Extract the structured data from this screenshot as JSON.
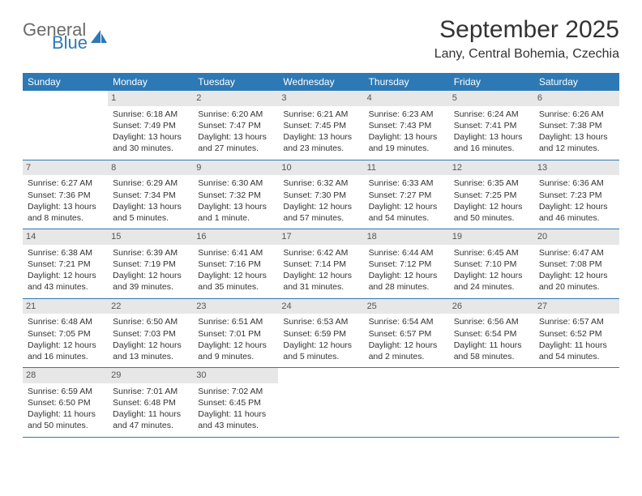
{
  "brand": {
    "word1": "General",
    "word2": "Blue"
  },
  "title": "September 2025",
  "location": "Lany, Central Bohemia, Czechia",
  "colors": {
    "header_blue": "#2d79b5",
    "daynum_bg": "#e7e7e7",
    "text": "#333333",
    "logo_gray": "#6b6b6b"
  },
  "weekdays": [
    "Sunday",
    "Monday",
    "Tuesday",
    "Wednesday",
    "Thursday",
    "Friday",
    "Saturday"
  ],
  "weeks": [
    [
      {
        "n": "",
        "sr": "",
        "ss": "",
        "dl1": "",
        "dl2": ""
      },
      {
        "n": "1",
        "sr": "Sunrise: 6:18 AM",
        "ss": "Sunset: 7:49 PM",
        "dl1": "Daylight: 13 hours",
        "dl2": "and 30 minutes."
      },
      {
        "n": "2",
        "sr": "Sunrise: 6:20 AM",
        "ss": "Sunset: 7:47 PM",
        "dl1": "Daylight: 13 hours",
        "dl2": "and 27 minutes."
      },
      {
        "n": "3",
        "sr": "Sunrise: 6:21 AM",
        "ss": "Sunset: 7:45 PM",
        "dl1": "Daylight: 13 hours",
        "dl2": "and 23 minutes."
      },
      {
        "n": "4",
        "sr": "Sunrise: 6:23 AM",
        "ss": "Sunset: 7:43 PM",
        "dl1": "Daylight: 13 hours",
        "dl2": "and 19 minutes."
      },
      {
        "n": "5",
        "sr": "Sunrise: 6:24 AM",
        "ss": "Sunset: 7:41 PM",
        "dl1": "Daylight: 13 hours",
        "dl2": "and 16 minutes."
      },
      {
        "n": "6",
        "sr": "Sunrise: 6:26 AM",
        "ss": "Sunset: 7:38 PM",
        "dl1": "Daylight: 13 hours",
        "dl2": "and 12 minutes."
      }
    ],
    [
      {
        "n": "7",
        "sr": "Sunrise: 6:27 AM",
        "ss": "Sunset: 7:36 PM",
        "dl1": "Daylight: 13 hours",
        "dl2": "and 8 minutes."
      },
      {
        "n": "8",
        "sr": "Sunrise: 6:29 AM",
        "ss": "Sunset: 7:34 PM",
        "dl1": "Daylight: 13 hours",
        "dl2": "and 5 minutes."
      },
      {
        "n": "9",
        "sr": "Sunrise: 6:30 AM",
        "ss": "Sunset: 7:32 PM",
        "dl1": "Daylight: 13 hours",
        "dl2": "and 1 minute."
      },
      {
        "n": "10",
        "sr": "Sunrise: 6:32 AM",
        "ss": "Sunset: 7:30 PM",
        "dl1": "Daylight: 12 hours",
        "dl2": "and 57 minutes."
      },
      {
        "n": "11",
        "sr": "Sunrise: 6:33 AM",
        "ss": "Sunset: 7:27 PM",
        "dl1": "Daylight: 12 hours",
        "dl2": "and 54 minutes."
      },
      {
        "n": "12",
        "sr": "Sunrise: 6:35 AM",
        "ss": "Sunset: 7:25 PM",
        "dl1": "Daylight: 12 hours",
        "dl2": "and 50 minutes."
      },
      {
        "n": "13",
        "sr": "Sunrise: 6:36 AM",
        "ss": "Sunset: 7:23 PM",
        "dl1": "Daylight: 12 hours",
        "dl2": "and 46 minutes."
      }
    ],
    [
      {
        "n": "14",
        "sr": "Sunrise: 6:38 AM",
        "ss": "Sunset: 7:21 PM",
        "dl1": "Daylight: 12 hours",
        "dl2": "and 43 minutes."
      },
      {
        "n": "15",
        "sr": "Sunrise: 6:39 AM",
        "ss": "Sunset: 7:19 PM",
        "dl1": "Daylight: 12 hours",
        "dl2": "and 39 minutes."
      },
      {
        "n": "16",
        "sr": "Sunrise: 6:41 AM",
        "ss": "Sunset: 7:16 PM",
        "dl1": "Daylight: 12 hours",
        "dl2": "and 35 minutes."
      },
      {
        "n": "17",
        "sr": "Sunrise: 6:42 AM",
        "ss": "Sunset: 7:14 PM",
        "dl1": "Daylight: 12 hours",
        "dl2": "and 31 minutes."
      },
      {
        "n": "18",
        "sr": "Sunrise: 6:44 AM",
        "ss": "Sunset: 7:12 PM",
        "dl1": "Daylight: 12 hours",
        "dl2": "and 28 minutes."
      },
      {
        "n": "19",
        "sr": "Sunrise: 6:45 AM",
        "ss": "Sunset: 7:10 PM",
        "dl1": "Daylight: 12 hours",
        "dl2": "and 24 minutes."
      },
      {
        "n": "20",
        "sr": "Sunrise: 6:47 AM",
        "ss": "Sunset: 7:08 PM",
        "dl1": "Daylight: 12 hours",
        "dl2": "and 20 minutes."
      }
    ],
    [
      {
        "n": "21",
        "sr": "Sunrise: 6:48 AM",
        "ss": "Sunset: 7:05 PM",
        "dl1": "Daylight: 12 hours",
        "dl2": "and 16 minutes."
      },
      {
        "n": "22",
        "sr": "Sunrise: 6:50 AM",
        "ss": "Sunset: 7:03 PM",
        "dl1": "Daylight: 12 hours",
        "dl2": "and 13 minutes."
      },
      {
        "n": "23",
        "sr": "Sunrise: 6:51 AM",
        "ss": "Sunset: 7:01 PM",
        "dl1": "Daylight: 12 hours",
        "dl2": "and 9 minutes."
      },
      {
        "n": "24",
        "sr": "Sunrise: 6:53 AM",
        "ss": "Sunset: 6:59 PM",
        "dl1": "Daylight: 12 hours",
        "dl2": "and 5 minutes."
      },
      {
        "n": "25",
        "sr": "Sunrise: 6:54 AM",
        "ss": "Sunset: 6:57 PM",
        "dl1": "Daylight: 12 hours",
        "dl2": "and 2 minutes."
      },
      {
        "n": "26",
        "sr": "Sunrise: 6:56 AM",
        "ss": "Sunset: 6:54 PM",
        "dl1": "Daylight: 11 hours",
        "dl2": "and 58 minutes."
      },
      {
        "n": "27",
        "sr": "Sunrise: 6:57 AM",
        "ss": "Sunset: 6:52 PM",
        "dl1": "Daylight: 11 hours",
        "dl2": "and 54 minutes."
      }
    ],
    [
      {
        "n": "28",
        "sr": "Sunrise: 6:59 AM",
        "ss": "Sunset: 6:50 PM",
        "dl1": "Daylight: 11 hours",
        "dl2": "and 50 minutes."
      },
      {
        "n": "29",
        "sr": "Sunrise: 7:01 AM",
        "ss": "Sunset: 6:48 PM",
        "dl1": "Daylight: 11 hours",
        "dl2": "and 47 minutes."
      },
      {
        "n": "30",
        "sr": "Sunrise: 7:02 AM",
        "ss": "Sunset: 6:45 PM",
        "dl1": "Daylight: 11 hours",
        "dl2": "and 43 minutes."
      },
      {
        "n": "",
        "sr": "",
        "ss": "",
        "dl1": "",
        "dl2": ""
      },
      {
        "n": "",
        "sr": "",
        "ss": "",
        "dl1": "",
        "dl2": ""
      },
      {
        "n": "",
        "sr": "",
        "ss": "",
        "dl1": "",
        "dl2": ""
      },
      {
        "n": "",
        "sr": "",
        "ss": "",
        "dl1": "",
        "dl2": ""
      }
    ]
  ]
}
